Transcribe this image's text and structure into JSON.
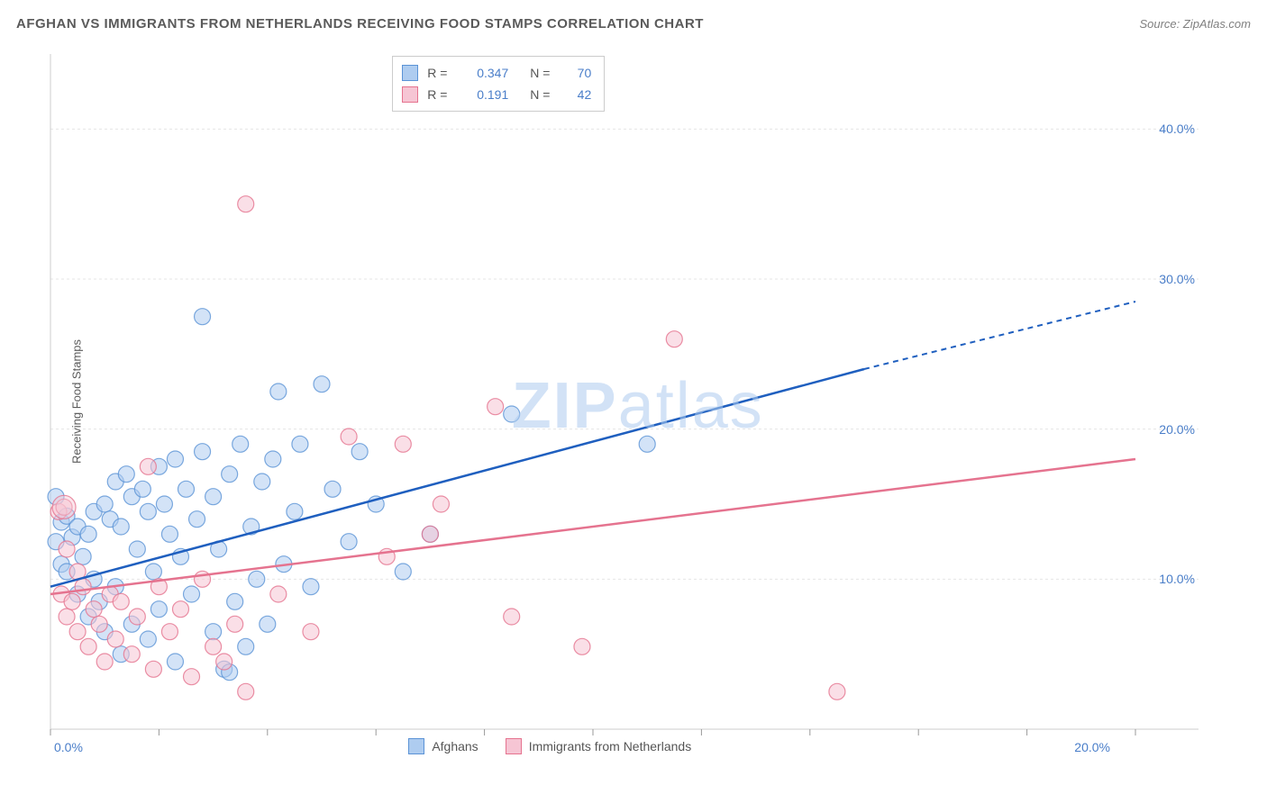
{
  "title": "AFGHAN VS IMMIGRANTS FROM NETHERLANDS RECEIVING FOOD STAMPS CORRELATION CHART",
  "source_prefix": "Source: ",
  "source_name": "ZipAtlas.com",
  "y_axis_label": "Receiving Food Stamps",
  "watermark": "ZIPatlas",
  "chart": {
    "type": "scatter-correlation",
    "background_color": "#ffffff",
    "grid_color": "#e5e5e5",
    "axis_color": "#cccccc",
    "tick_color": "#999999",
    "tick_label_color": "#4a7ec9",
    "x_range": [
      0,
      20
    ],
    "y_range": [
      0,
      45
    ],
    "x_ticks": [
      0,
      2,
      4,
      6,
      8,
      10,
      12,
      14,
      16,
      18,
      20
    ],
    "x_tick_labels": {
      "0": "0.0%",
      "20": "20.0%"
    },
    "y_gridlines": [
      10,
      20,
      30,
      40
    ],
    "y_tick_labels": {
      "10": "10.0%",
      "20": "20.0%",
      "30": "30.0%",
      "40": "40.0%"
    },
    "marker_radius": 9,
    "marker_large_radius": 13,
    "marker_opacity": 0.55,
    "series": [
      {
        "name": "Afghans",
        "fill": "#aeccf0",
        "stroke": "#5b93d6",
        "line_color": "#1f5fbf",
        "R": "0.347",
        "N": "70",
        "trend": {
          "x1": 0,
          "y1": 9.5,
          "x2": 15,
          "y2": 24,
          "dash_from_x": 15,
          "x_end": 20,
          "y_end": 28.5
        },
        "points": [
          [
            0.1,
            15.5
          ],
          [
            0.1,
            12.5
          ],
          [
            0.2,
            13.8
          ],
          [
            0.2,
            11.0
          ],
          [
            0.3,
            14.2
          ],
          [
            0.3,
            10.5
          ],
          [
            0.4,
            12.8
          ],
          [
            0.5,
            13.5
          ],
          [
            0.5,
            9.0
          ],
          [
            0.6,
            11.5
          ],
          [
            0.7,
            13.0
          ],
          [
            0.7,
            7.5
          ],
          [
            0.8,
            14.5
          ],
          [
            0.8,
            10.0
          ],
          [
            0.9,
            8.5
          ],
          [
            1.0,
            15.0
          ],
          [
            1.0,
            6.5
          ],
          [
            1.1,
            14.0
          ],
          [
            1.2,
            16.5
          ],
          [
            1.2,
            9.5
          ],
          [
            1.3,
            13.5
          ],
          [
            1.3,
            5.0
          ],
          [
            1.4,
            17.0
          ],
          [
            1.5,
            15.5
          ],
          [
            1.5,
            7.0
          ],
          [
            1.6,
            12.0
          ],
          [
            1.7,
            16.0
          ],
          [
            1.8,
            14.5
          ],
          [
            1.8,
            6.0
          ],
          [
            1.9,
            10.5
          ],
          [
            2.0,
            17.5
          ],
          [
            2.0,
            8.0
          ],
          [
            2.1,
            15.0
          ],
          [
            2.2,
            13.0
          ],
          [
            2.3,
            18.0
          ],
          [
            2.3,
            4.5
          ],
          [
            2.4,
            11.5
          ],
          [
            2.5,
            16.0
          ],
          [
            2.6,
            9.0
          ],
          [
            2.7,
            14.0
          ],
          [
            2.8,
            18.5
          ],
          [
            2.8,
            27.5
          ],
          [
            3.0,
            6.5
          ],
          [
            3.0,
            15.5
          ],
          [
            3.1,
            12.0
          ],
          [
            3.2,
            4.0
          ],
          [
            3.3,
            17.0
          ],
          [
            3.4,
            8.5
          ],
          [
            3.5,
            19.0
          ],
          [
            3.6,
            5.5
          ],
          [
            3.7,
            13.5
          ],
          [
            3.8,
            10.0
          ],
          [
            3.9,
            16.5
          ],
          [
            4.0,
            7.0
          ],
          [
            4.1,
            18.0
          ],
          [
            4.2,
            22.5
          ],
          [
            4.3,
            11.0
          ],
          [
            4.5,
            14.5
          ],
          [
            4.6,
            19.0
          ],
          [
            4.8,
            9.5
          ],
          [
            5.0,
            23.0
          ],
          [
            5.2,
            16.0
          ],
          [
            5.5,
            12.5
          ],
          [
            5.7,
            18.5
          ],
          [
            6.0,
            15.0
          ],
          [
            6.5,
            10.5
          ],
          [
            7.0,
            13.0
          ],
          [
            8.5,
            21.0
          ],
          [
            11.0,
            19.0
          ],
          [
            3.3,
            3.8
          ]
        ]
      },
      {
        "name": "Immigrants from Netherlands",
        "fill": "#f6c5d4",
        "stroke": "#e5738f",
        "line_color": "#e5738f",
        "R": "0.191",
        "N": "42",
        "trend": {
          "x1": 0,
          "y1": 9.0,
          "x2": 20,
          "y2": 18.0
        },
        "points": [
          [
            0.15,
            14.5
          ],
          [
            0.2,
            9.0
          ],
          [
            0.3,
            12.0
          ],
          [
            0.3,
            7.5
          ],
          [
            0.4,
            8.5
          ],
          [
            0.5,
            6.5
          ],
          [
            0.6,
            9.5
          ],
          [
            0.7,
            5.5
          ],
          [
            0.8,
            8.0
          ],
          [
            0.9,
            7.0
          ],
          [
            1.0,
            4.5
          ],
          [
            1.1,
            9.0
          ],
          [
            1.2,
            6.0
          ],
          [
            1.3,
            8.5
          ],
          [
            1.5,
            5.0
          ],
          [
            1.6,
            7.5
          ],
          [
            1.8,
            17.5
          ],
          [
            1.9,
            4.0
          ],
          [
            2.0,
            9.5
          ],
          [
            2.2,
            6.5
          ],
          [
            2.4,
            8.0
          ],
          [
            2.6,
            3.5
          ],
          [
            2.8,
            10.0
          ],
          [
            3.0,
            5.5
          ],
          [
            3.2,
            4.5
          ],
          [
            3.4,
            7.0
          ],
          [
            3.6,
            35.0
          ],
          [
            3.6,
            2.5
          ],
          [
            4.2,
            9.0
          ],
          [
            4.8,
            6.5
          ],
          [
            5.5,
            19.5
          ],
          [
            6.2,
            11.5
          ],
          [
            6.5,
            19.0
          ],
          [
            7.0,
            13.0
          ],
          [
            7.2,
            15.0
          ],
          [
            8.2,
            21.5
          ],
          [
            8.5,
            7.5
          ],
          [
            9.8,
            5.5
          ],
          [
            11.5,
            26.0
          ],
          [
            14.5,
            2.5
          ],
          [
            0.25,
            14.8
          ],
          [
            0.5,
            10.5
          ]
        ],
        "large_point": [
          0.25,
          14.8
        ]
      }
    ]
  },
  "legend_top": {
    "R_label": "R =",
    "N_label": "N ="
  },
  "legend_bottom_items": [
    "Afghans",
    "Immigrants from Netherlands"
  ]
}
